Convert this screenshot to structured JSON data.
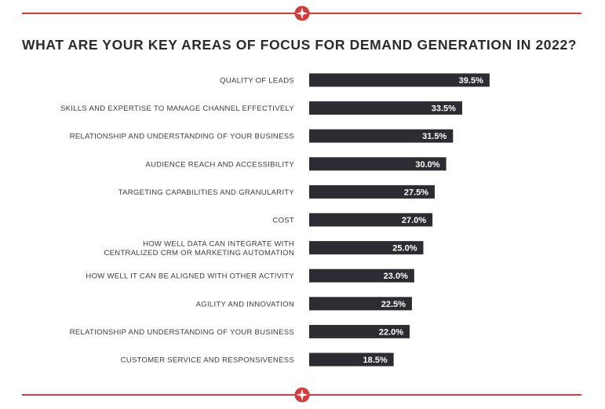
{
  "title": "WHAT ARE YOUR KEY AREAS OF FOCUS FOR DEMAND GENERATION IN 2022?",
  "colors": {
    "accent": "#d63a3a",
    "bar": "#2d2c33",
    "text": "#3a3a3d",
    "value_text": "#ffffff"
  },
  "icons": {
    "divider_badge": "red-circle-star-icon"
  },
  "chart_data": {
    "type": "bar",
    "orientation": "horizontal",
    "title": "WHAT ARE YOUR KEY AREAS OF FOCUS FOR DEMAND GENERATION IN 2022?",
    "xlabel": "",
    "ylabel": "",
    "xlim": [
      0,
      100
    ],
    "grid": false,
    "legend": "none",
    "categories": [
      [
        "QUALITY OF LEADS"
      ],
      [
        "SKILLS AND EXPERTISE TO MANAGE CHANNEL EFFECTIVELY"
      ],
      [
        "RELATIONSHIP AND UNDERSTANDING OF YOUR BUSINESS"
      ],
      [
        "AUDIENCE REACH AND ACCESSIBILITY"
      ],
      [
        "TARGETING CAPABILITIES AND GRANULARITY"
      ],
      [
        "COST"
      ],
      [
        "HOW WELL DATA CAN INTEGRATE WITH",
        "CENTRALIZED CRM OR MARKETING AUTOMATION"
      ],
      [
        "HOW WELL IT CAN BE ALIGNED WITH OTHER ACTIVITY"
      ],
      [
        "AGILITY AND INNOVATION"
      ],
      [
        "RELATIONSHIP AND UNDERSTANDING OF YOUR BUSINESS"
      ],
      [
        "CUSTOMER SERVICE AND RESPONSIVENESS"
      ]
    ],
    "values": [
      39.5,
      33.5,
      31.5,
      30.0,
      27.5,
      27.0,
      25.0,
      23.0,
      22.5,
      22.0,
      18.5
    ],
    "value_labels": [
      "39.5%",
      "33.5%",
      "31.5%",
      "30.0%",
      "27.5%",
      "27.0%",
      "25.0%",
      "23.0%",
      "22.5%",
      "22.0%",
      "18.5%"
    ]
  }
}
